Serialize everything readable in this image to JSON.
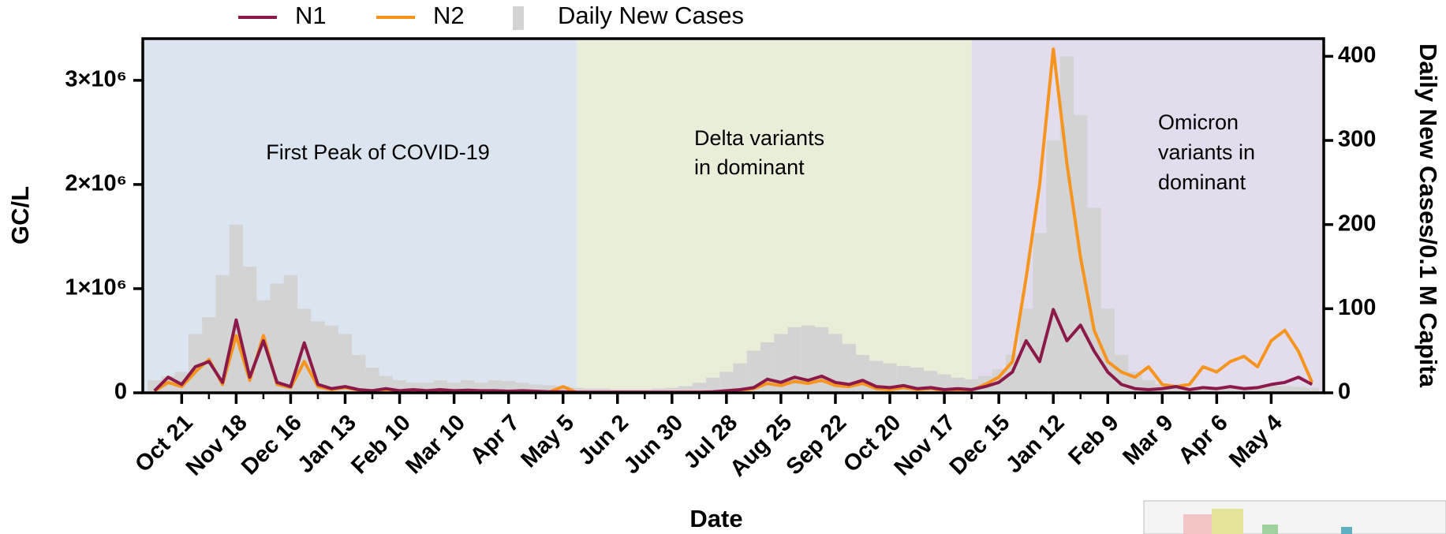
{
  "chart_data": {
    "type": "combo",
    "x_label": "Date",
    "y_label": "GC/L",
    "y2_label": "Daily New Cases/0.1 M Capita",
    "x": [
      -14,
      -7,
      0,
      7,
      14,
      21,
      28,
      35,
      42,
      49,
      56,
      63,
      70,
      77,
      84,
      91,
      98,
      105,
      112,
      119,
      126,
      133,
      140,
      147,
      154,
      161,
      168,
      175,
      182,
      189,
      196,
      203,
      210,
      217,
      224,
      231,
      238,
      245,
      252,
      259,
      266,
      273,
      280,
      287,
      294,
      301,
      308,
      315,
      322,
      329,
      336,
      343,
      350,
      357,
      364,
      371,
      378,
      385,
      392,
      399,
      406,
      413,
      420,
      427,
      434,
      441,
      448,
      455,
      462,
      469,
      476,
      483,
      490,
      497,
      504,
      511,
      518,
      525,
      532,
      539,
      546,
      553,
      560,
      567,
      574,
      581
    ],
    "xlim": [
      -20,
      587
    ],
    "xticks": [
      {
        "value": 0,
        "label": "Oct 21"
      },
      {
        "value": 28,
        "label": "Nov 18"
      },
      {
        "value": 56,
        "label": "Dec 16"
      },
      {
        "value": 84,
        "label": "Jan 13"
      },
      {
        "value": 112,
        "label": "Feb 10"
      },
      {
        "value": 140,
        "label": "Mar 10"
      },
      {
        "value": 168,
        "label": "Apr 7"
      },
      {
        "value": 196,
        "label": "May 5"
      },
      {
        "value": 224,
        "label": "Jun 2"
      },
      {
        "value": 252,
        "label": "Jun 30"
      },
      {
        "value": 280,
        "label": "Jul 28"
      },
      {
        "value": 308,
        "label": "Aug 25"
      },
      {
        "value": 336,
        "label": "Sep 22"
      },
      {
        "value": 364,
        "label": "Oct 20"
      },
      {
        "value": 392,
        "label": "Nov 17"
      },
      {
        "value": 420,
        "label": "Dec 15"
      },
      {
        "value": 448,
        "label": "Jan 12"
      },
      {
        "value": 476,
        "label": "Feb 9"
      },
      {
        "value": 504,
        "label": "Mar 9"
      },
      {
        "value": 532,
        "label": "Apr 6"
      },
      {
        "value": 560,
        "label": "May 4"
      }
    ],
    "ylim": [
      0,
      3400000
    ],
    "yticks": [
      0,
      {
        "value": 1000000,
        "label": "1×10⁶"
      },
      {
        "value": 2000000,
        "label": "2×10⁶"
      },
      {
        "value": 3000000,
        "label": "3×10⁶"
      }
    ],
    "y2lim": [
      0,
      421
    ],
    "y2ticks": [
      0,
      100,
      200,
      300,
      400
    ],
    "regions": [
      {
        "start": -20,
        "end": 203,
        "color": "#dae5f0",
        "label": [
          "First Peak of COVID-19"
        ]
      },
      {
        "start": 203,
        "end": 406,
        "color": "#e9eed9",
        "label": [
          "Delta variants",
          "in dominant"
        ]
      },
      {
        "start": 406,
        "end": 587,
        "color": "#e2dcec",
        "label": [
          "Omicron",
          "variants in",
          "dominant"
        ]
      }
    ],
    "series": [
      {
        "name": "Daily New Cases",
        "type": "bar",
        "axis": "y2",
        "color": "#d3d3d3",
        "values": [
          15,
          20,
          25,
          70,
          90,
          140,
          200,
          150,
          110,
          130,
          140,
          100,
          85,
          80,
          70,
          45,
          30,
          20,
          15,
          12,
          12,
          15,
          12,
          15,
          12,
          15,
          14,
          12,
          10,
          9,
          8,
          6,
          5,
          5,
          4,
          4,
          4,
          5,
          6,
          8,
          12,
          18,
          25,
          35,
          50,
          60,
          70,
          78,
          80,
          78,
          70,
          58,
          45,
          38,
          35,
          32,
          30,
          26,
          22,
          18,
          16,
          20,
          28,
          45,
          100,
          190,
          300,
          400,
          330,
          220,
          100,
          45,
          25,
          15,
          10,
          8,
          6,
          5,
          5,
          5,
          6,
          7,
          8,
          8,
          7,
          6
        ]
      },
      {
        "name": "N2",
        "type": "line",
        "axis": "y",
        "color": "#f7941d",
        "values": [
          15000,
          100000,
          60000,
          200000,
          320000,
          80000,
          550000,
          120000,
          550000,
          80000,
          50000,
          300000,
          60000,
          30000,
          50000,
          25000,
          15000,
          30000,
          15000,
          25000,
          15000,
          25000,
          15000,
          20000,
          15000,
          15000,
          10000,
          15000,
          10000,
          8000,
          60000,
          5000,
          4000,
          4000,
          4000,
          4000,
          4000,
          4000,
          4000,
          5000,
          6000,
          8000,
          15000,
          20000,
          40000,
          90000,
          70000,
          110000,
          90000,
          120000,
          70000,
          60000,
          90000,
          40000,
          30000,
          50000,
          30000,
          40000,
          20000,
          30000,
          25000,
          80000,
          150000,
          300000,
          1100000,
          2000000,
          3300000,
          2200000,
          1300000,
          600000,
          300000,
          200000,
          150000,
          250000,
          80000,
          60000,
          80000,
          250000,
          200000,
          300000,
          350000,
          250000,
          500000,
          600000,
          400000,
          100000
        ]
      },
      {
        "name": "N1",
        "type": "line",
        "axis": "y",
        "color": "#8b1a4a",
        "values": [
          20000,
          150000,
          80000,
          250000,
          300000,
          100000,
          700000,
          150000,
          500000,
          100000,
          60000,
          480000,
          80000,
          40000,
          60000,
          30000,
          20000,
          40000,
          20000,
          30000,
          20000,
          30000,
          20000,
          25000,
          20000,
          20000,
          15000,
          20000,
          15000,
          10000,
          10000,
          5000,
          5000,
          5000,
          5000,
          5000,
          5000,
          5000,
          5000,
          5000,
          5000,
          10000,
          20000,
          30000,
          50000,
          130000,
          100000,
          150000,
          120000,
          160000,
          100000,
          80000,
          120000,
          60000,
          50000,
          70000,
          40000,
          50000,
          30000,
          40000,
          30000,
          60000,
          100000,
          200000,
          500000,
          300000,
          800000,
          500000,
          650000,
          400000,
          200000,
          80000,
          40000,
          30000,
          40000,
          60000,
          30000,
          50000,
          40000,
          60000,
          40000,
          50000,
          80000,
          100000,
          150000,
          80000
        ]
      }
    ]
  }
}
